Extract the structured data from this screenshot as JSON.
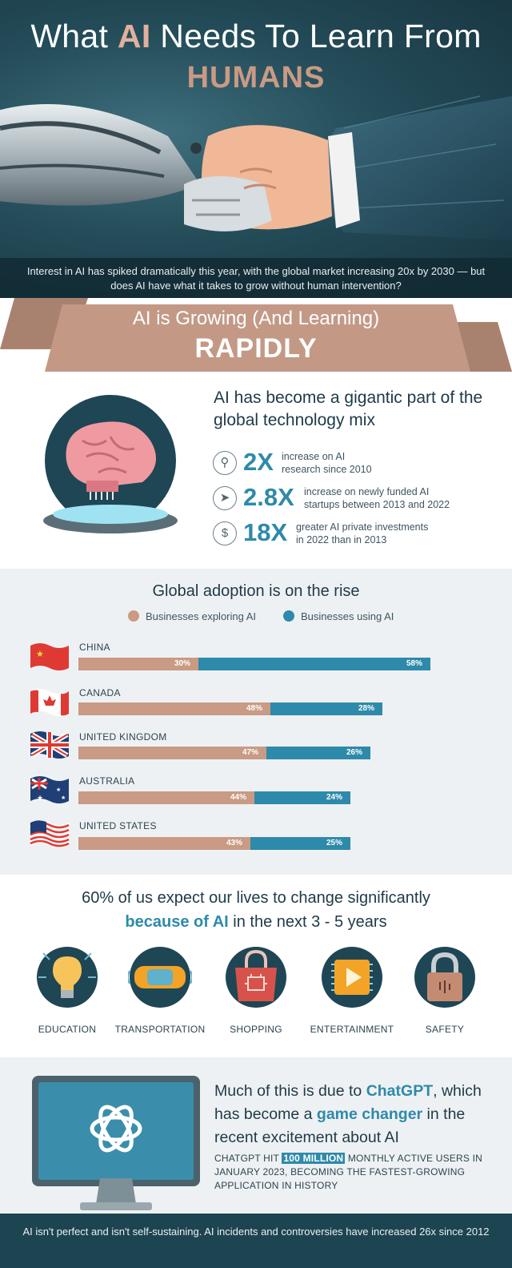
{
  "hero": {
    "title_pre": "What ",
    "title_ai": "AI",
    "title_post": " Needs To Learn From",
    "subtitle": "HUMANS",
    "caption": "Interest in AI has spiked dramatically this year, with the global market increasing 20x by 2030 — but does AI have what it takes to grow without human intervention?"
  },
  "ribbon": {
    "top": "AI is Growing (And Learning)",
    "main": "RAPIDLY"
  },
  "growth": {
    "title": "AI has become a gigantic part of the global technology mix",
    "stats": [
      {
        "icon": "magnifier-icon",
        "value": "2X",
        "desc_line1": "increase on AI",
        "desc_line2": "research since 2010"
      },
      {
        "icon": "rocket-icon",
        "value": "2.8X",
        "desc_line1": "increase on newly funded AI",
        "desc_line2": "startups between 2013 and 2022"
      },
      {
        "icon": "dollar-icon",
        "value": "18X",
        "desc_line1": "greater AI private investments",
        "desc_line2": "in 2022 than in 2013"
      }
    ]
  },
  "chart_data": {
    "type": "bar",
    "title": "Global adoption is on the rise",
    "orientation": "horizontal",
    "stacked": true,
    "categories": [
      "CHINA",
      "CANADA",
      "UNITED KINGDOM",
      "AUSTRALIA",
      "UNITED STATES"
    ],
    "series": [
      {
        "name": "Businesses exploring AI",
        "values": [
          30,
          48,
          47,
          44,
          43
        ],
        "labels": [
          "30%",
          "48%",
          "47%",
          "44%",
          "43%"
        ],
        "color": "#c99a84"
      },
      {
        "name": "Businesses using AI",
        "values": [
          58,
          28,
          26,
          24,
          25
        ],
        "labels": [
          "58%",
          "28%",
          "26%",
          "24%",
          "25%"
        ],
        "color": "#2e8aaa"
      }
    ],
    "legend": "top"
  },
  "change": {
    "line1": "60% of us expect our lives to change significantly",
    "line2_hl": "because of AI",
    "line2_rest": " in the next 3 - 5 years",
    "areas": [
      {
        "icon": "lightbulb-icon",
        "label": "EDUCATION"
      },
      {
        "icon": "car-icon",
        "label": "TRANSPORTATION"
      },
      {
        "icon": "shopping-bag-icon",
        "label": "SHOPPING"
      },
      {
        "icon": "play-icon",
        "label": "ENTERTAINMENT"
      },
      {
        "icon": "padlock-icon",
        "label": "SAFETY"
      }
    ]
  },
  "chatgpt": {
    "title_a": "Much of this is due to ",
    "title_b": "ChatGPT",
    "title_c": ", which has become a ",
    "title_d": "game changer",
    "title_e": " in the recent excitement about AI",
    "text_a": "CHATGPT HIT ",
    "text_mark": "100 MILLION",
    "text_b": " MONTHLY ACTIVE USERS IN JANUARY 2023, BECOMING THE FASTEST-GROWING APPLICATION IN HISTORY"
  },
  "footer": {
    "text": "AI isn't perfect and isn't self-sustaining. AI incidents and controversies have increased 26x since 2012"
  },
  "colors": {
    "navy": "#1d4451",
    "teal": "#2e8aaa",
    "tan": "#c99a84"
  }
}
